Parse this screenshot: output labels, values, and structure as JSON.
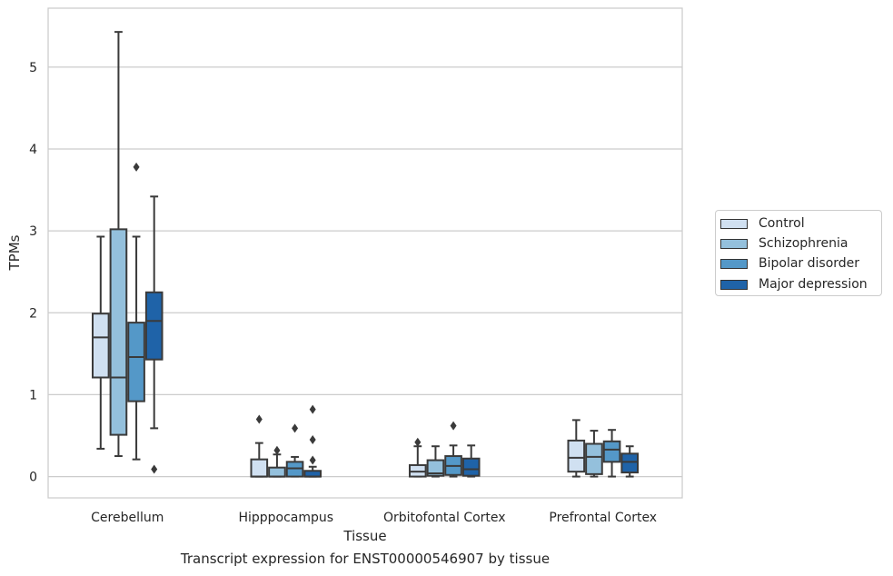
{
  "caption": "Transcript expression for ENST00000546907 by tissue",
  "chart_data": {
    "type": "box",
    "xlabel": "Tissue",
    "ylabel": "TPMs",
    "ylim": [
      -0.26,
      5.72
    ],
    "yticks": [
      0,
      1,
      2,
      3,
      4,
      5
    ],
    "grid": "horizontal",
    "legend_position": "right",
    "categories": [
      "Cerebellum",
      "Hipppocampus",
      "Orbitofontal Cortex",
      "Prefrontal Cortex"
    ],
    "series": [
      {
        "name": "Control",
        "color": "#d0e0f1",
        "boxes": [
          {
            "whisker_low": 0.34,
            "q1": 1.21,
            "median": 1.7,
            "q3": 1.99,
            "whisker_high": 2.93,
            "outliers": []
          },
          {
            "whisker_low": 0.0,
            "q1": 0.0,
            "median": 0.0,
            "q3": 0.21,
            "whisker_high": 0.41,
            "outliers": [
              0.7
            ]
          },
          {
            "whisker_low": 0.0,
            "q1": 0.0,
            "median": 0.06,
            "q3": 0.14,
            "whisker_high": 0.37,
            "outliers": [
              0.42
            ]
          },
          {
            "whisker_low": 0.0,
            "q1": 0.06,
            "median": 0.23,
            "q3": 0.44,
            "whisker_high": 0.69,
            "outliers": []
          }
        ]
      },
      {
        "name": "Schizophrenia",
        "color": "#94c0dc",
        "boxes": [
          {
            "whisker_low": 0.25,
            "q1": 0.51,
            "median": 1.21,
            "q3": 3.02,
            "whisker_high": 5.43,
            "outliers": []
          },
          {
            "whisker_low": 0.0,
            "q1": 0.0,
            "median": 0.0,
            "q3": 0.11,
            "whisker_high": 0.27,
            "outliers": [
              0.32
            ]
          },
          {
            "whisker_low": 0.0,
            "q1": 0.01,
            "median": 0.04,
            "q3": 0.2,
            "whisker_high": 0.37,
            "outliers": []
          },
          {
            "whisker_low": 0.0,
            "q1": 0.03,
            "median": 0.24,
            "q3": 0.4,
            "whisker_high": 0.56,
            "outliers": []
          }
        ]
      },
      {
        "name": "Bipolar disorder",
        "color": "#5498c8",
        "boxes": [
          {
            "whisker_low": 0.21,
            "q1": 0.92,
            "median": 1.46,
            "q3": 1.88,
            "whisker_high": 2.93,
            "outliers": [
              3.78
            ]
          },
          {
            "whisker_low": 0.0,
            "q1": 0.0,
            "median": 0.1,
            "q3": 0.18,
            "whisker_high": 0.24,
            "outliers": [
              0.59
            ]
          },
          {
            "whisker_low": 0.0,
            "q1": 0.02,
            "median": 0.13,
            "q3": 0.25,
            "whisker_high": 0.38,
            "outliers": [
              0.62
            ]
          },
          {
            "whisker_low": 0.0,
            "q1": 0.18,
            "median": 0.33,
            "q3": 0.43,
            "whisker_high": 0.57,
            "outliers": []
          }
        ]
      },
      {
        "name": "Major depression",
        "color": "#1f63a8",
        "boxes": [
          {
            "whisker_low": 0.59,
            "q1": 1.43,
            "median": 1.9,
            "q3": 2.25,
            "whisker_high": 3.42,
            "outliers": [
              0.09
            ]
          },
          {
            "whisker_low": 0.0,
            "q1": 0.0,
            "median": 0.0,
            "q3": 0.07,
            "whisker_high": 0.12,
            "outliers": [
              0.2,
              0.45,
              0.82
            ]
          },
          {
            "whisker_low": 0.0,
            "q1": 0.01,
            "median": 0.09,
            "q3": 0.22,
            "whisker_high": 0.38,
            "outliers": []
          },
          {
            "whisker_low": 0.0,
            "q1": 0.05,
            "median": 0.18,
            "q3": 0.28,
            "whisker_high": 0.37,
            "outliers": []
          }
        ]
      }
    ]
  }
}
